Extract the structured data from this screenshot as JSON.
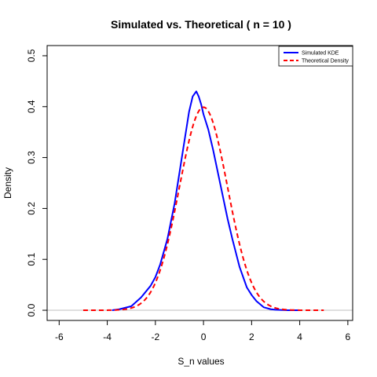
{
  "chart_data": {
    "type": "line",
    "title": "Simulated vs. Theoretical ( n = 10 )",
    "xlabel": "S_n values",
    "ylabel": "Density",
    "xlim": [
      -6.5,
      6.2
    ],
    "ylim": [
      -0.02,
      0.52
    ],
    "xticks": [
      -6,
      -4,
      -2,
      0,
      2,
      4,
      6
    ],
    "yticks": [
      0.0,
      0.1,
      0.2,
      0.3,
      0.4,
      0.5
    ],
    "legend_position": "top-right",
    "grid": false,
    "zero_line": true,
    "series": [
      {
        "name": "Simulated KDE",
        "color": "#0000ff",
        "style": "solid",
        "x": [
          -3.8,
          -3.5,
          -3.0,
          -2.6,
          -2.2,
          -2.0,
          -1.8,
          -1.5,
          -1.2,
          -1.0,
          -0.8,
          -0.6,
          -0.45,
          -0.3,
          -0.2,
          -0.1,
          0.0,
          0.2,
          0.4,
          0.6,
          0.8,
          1.0,
          1.2,
          1.5,
          1.8,
          2.0,
          2.2,
          2.5,
          2.8,
          3.0,
          3.5,
          4.0
        ],
        "y": [
          0.0,
          0.002,
          0.008,
          0.025,
          0.048,
          0.065,
          0.09,
          0.14,
          0.21,
          0.27,
          0.33,
          0.39,
          0.42,
          0.43,
          0.42,
          0.405,
          0.385,
          0.355,
          0.315,
          0.27,
          0.225,
          0.18,
          0.14,
          0.085,
          0.045,
          0.03,
          0.018,
          0.006,
          0.002,
          0.001,
          0.0,
          0.0
        ]
      },
      {
        "name": "Theoretical Density",
        "color": "#ff0000",
        "style": "dashed",
        "distribution": "standard normal",
        "x_range": [
          -5,
          5
        ]
      }
    ]
  }
}
